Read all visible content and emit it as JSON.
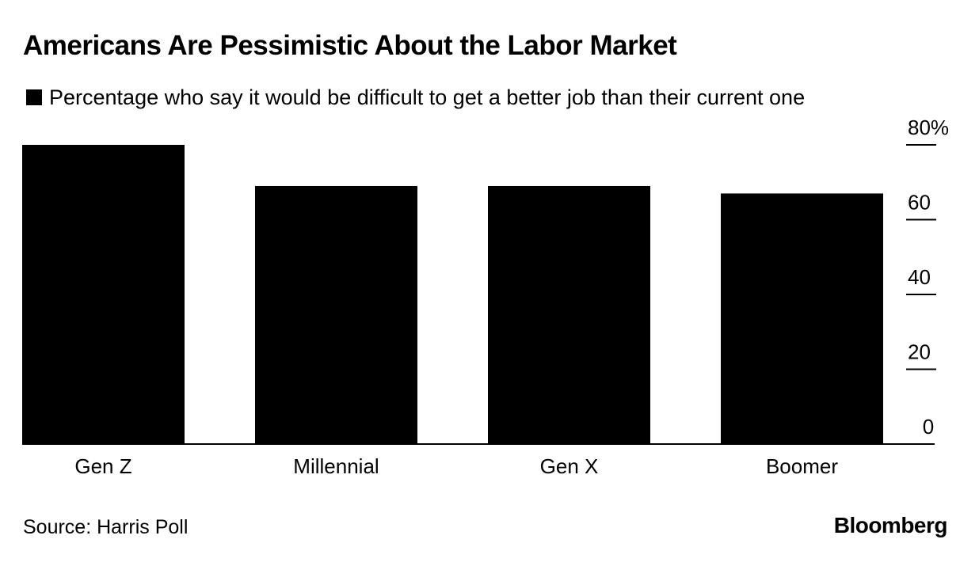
{
  "header": {
    "title": "Americans Are Pessimistic About the Labor Market"
  },
  "legend": {
    "label": "Percentage who say it would be difficult to get a better job than their current one",
    "color": "#000000"
  },
  "chart_data": {
    "type": "bar",
    "title": "Americans Are Pessimistic About the Labor Market",
    "categories": [
      "Gen Z",
      "Millennial",
      "Gen X",
      "Boomer"
    ],
    "series": [
      {
        "name": "Percentage who say it would be difficult to get a better job than their current one",
        "values": [
          80,
          69,
          69,
          67
        ],
        "color": "#000000"
      }
    ],
    "ylim": [
      0,
      80
    ],
    "y_ticks": [
      "0",
      "20",
      "40",
      "60",
      "80%"
    ],
    "y_tick_values": [
      0,
      20,
      40,
      60,
      80
    ],
    "y_axis_side": "right",
    "grid": false,
    "legend_position": "top-left"
  },
  "footer": {
    "source": "Source: Harris Poll",
    "brand": "Bloomberg"
  }
}
